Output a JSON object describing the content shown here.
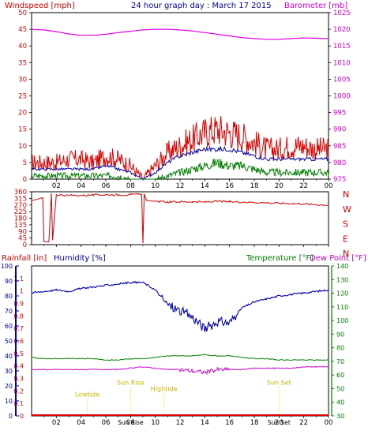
{
  "title": "24 hour graph day : March 17 2015",
  "colors": {
    "wind": "#e00000",
    "wind_avg": "#0000b0",
    "wind_low": "#008000",
    "baro": "#e000e0",
    "dir": "#d00000",
    "rain": "#e00000",
    "humidity": "#0000b0",
    "temp": "#008000",
    "dew": "#d000d0",
    "tide": "#e0d000"
  },
  "x_ticks": [
    "02",
    "04",
    "06",
    "08",
    "10",
    "12",
    "14",
    "16",
    "18",
    "20",
    "22",
    "00"
  ],
  "chart_data": [
    {
      "type": "line",
      "title": "24 hour graph day : March 17 2015",
      "ylabel": "Windspeed [mph]",
      "y2label": "Barometer [mb]",
      "ylim": [
        0,
        50
      ],
      "y2lim": [
        975,
        1025
      ],
      "y_ticks": [
        0,
        5,
        10,
        15,
        20,
        25,
        30,
        35,
        40,
        45,
        50
      ],
      "y2_ticks": [
        975,
        980,
        985,
        990,
        995,
        1000,
        1005,
        1010,
        1015,
        1020,
        1025
      ],
      "series": [
        {
          "x": [
            0,
            1,
            2,
            3,
            4,
            5,
            6,
            7,
            8,
            9,
            10,
            11,
            12,
            13,
            14,
            15,
            16,
            17,
            18,
            19,
            20,
            21,
            22,
            23,
            24
          ],
          "values": [
            5,
            5,
            5,
            6,
            6,
            5,
            7,
            6,
            4,
            0,
            4,
            8,
            10,
            12,
            14,
            15,
            14,
            13,
            11,
            9,
            9,
            10,
            10,
            9,
            9
          ]
        },
        {
          "x": [
            0,
            1,
            2,
            3,
            4,
            5,
            6,
            7,
            8,
            9,
            10,
            11,
            12,
            13,
            14,
            15,
            16,
            17,
            18,
            19,
            20,
            21,
            22,
            23,
            24
          ],
          "values": [
            3,
            3,
            3,
            3,
            3,
            3,
            4,
            3,
            2,
            0,
            2,
            5,
            7,
            8,
            9,
            9,
            9,
            8,
            7,
            6,
            6,
            6,
            6,
            6,
            6
          ]
        },
        {
          "x": [
            0,
            1,
            2,
            3,
            4,
            5,
            6,
            7,
            8,
            9,
            10,
            11,
            12,
            13,
            14,
            15,
            16,
            17,
            18,
            19,
            20,
            21,
            22,
            23,
            24
          ],
          "values": [
            1,
            1,
            1,
            1,
            1,
            1,
            1,
            1,
            0,
            0,
            0,
            1,
            2,
            3,
            4,
            5,
            4,
            4,
            3,
            2,
            2,
            2,
            2,
            2,
            2
          ]
        },
        {
          "x": [
            0,
            1,
            2,
            3,
            4,
            5,
            6,
            7,
            8,
            9,
            10,
            11,
            12,
            13,
            14,
            15,
            16,
            17,
            18,
            19,
            20,
            21,
            22,
            23,
            24
          ],
          "values": [
            1020.0,
            1019.8,
            1019.3,
            1018.6,
            1018.2,
            1018.2,
            1018.5,
            1019.0,
            1019.4,
            1019.8,
            1020.0,
            1020.0,
            1019.8,
            1019.5,
            1019.0,
            1018.5,
            1018.0,
            1017.5,
            1017.2,
            1017.0,
            1017.0,
            1017.2,
            1017.4,
            1017.3,
            1017.2
          ]
        }
      ]
    },
    {
      "type": "line",
      "ylim": [
        0,
        360
      ],
      "y_ticks": [
        0,
        45,
        90,
        135,
        180,
        225,
        270,
        315,
        360
      ],
      "y2_labels": [
        "N",
        "W",
        "S",
        "E",
        "N"
      ],
      "series": [
        {
          "x": [
            0,
            0.5,
            0.9,
            1.0,
            1.4,
            1.6,
            1.7,
            2.0,
            3,
            4,
            5,
            6,
            7,
            8,
            8.9,
            9.0,
            9.1,
            9.3,
            10,
            11,
            12,
            13,
            14,
            15,
            16,
            17,
            18,
            19,
            20,
            21,
            22,
            23,
            24
          ],
          "values": [
            300,
            310,
            320,
            20,
            20,
            350,
            30,
            340,
            335,
            335,
            338,
            340,
            338,
            340,
            345,
            10,
            345,
            300,
            295,
            290,
            292,
            292,
            290,
            295,
            292,
            290,
            288,
            285,
            282,
            280,
            278,
            272,
            270
          ]
        }
      ]
    },
    {
      "type": "line",
      "ylabel": "Rainfall [in]",
      "ylabel2": "Humidity [%]",
      "y2label": "Temperature [°F]",
      "y2label2": "Dew Point [°F]",
      "ylim_rain": [
        0,
        1.2
      ],
      "ylim_humidity": [
        0,
        100
      ],
      "y2lim": [
        30,
        140
      ],
      "rain_ticks": [
        0,
        0.1,
        0.2,
        0.3,
        0.4,
        0.5,
        0.6,
        0.7,
        0.8,
        0.9,
        1,
        1.1
      ],
      "humidity_ticks": [
        0,
        10,
        20,
        30,
        40,
        50,
        60,
        70,
        80,
        90,
        100
      ],
      "temp_ticks": [
        30,
        40,
        50,
        60,
        70,
        80,
        90,
        100,
        110,
        120,
        130,
        140
      ],
      "series": [
        {
          "x": [
            0,
            1,
            2,
            3,
            4,
            5,
            6,
            7,
            8,
            9,
            10,
            11,
            12,
            13,
            14,
            15,
            16,
            17,
            18,
            19,
            20,
            21,
            22,
            23,
            24
          ],
          "values": [
            0,
            0,
            0,
            0,
            0,
            0,
            0,
            0,
            0,
            0,
            0,
            0,
            0,
            0,
            0,
            0,
            0,
            0,
            0,
            0,
            0,
            0,
            0,
            0,
            0
          ]
        },
        {
          "x": [
            0,
            1,
            2,
            3,
            4,
            5,
            6,
            7,
            8,
            9,
            10,
            11,
            12,
            13,
            14,
            15,
            16,
            17,
            18,
            19,
            20,
            21,
            22,
            23,
            24
          ],
          "values": [
            82,
            83,
            84,
            83,
            85,
            86,
            87,
            88,
            89,
            89,
            84,
            74,
            70,
            66,
            58,
            63,
            62,
            72,
            76,
            78,
            80,
            81,
            82,
            83,
            84
          ]
        },
        {
          "x": [
            0,
            1,
            2,
            3,
            4,
            5,
            6,
            7,
            8,
            9,
            10,
            11,
            12,
            13,
            14,
            15,
            16,
            17,
            18,
            19,
            20,
            21,
            22,
            23,
            24
          ],
          "values": [
            73,
            72,
            72,
            72,
            72,
            72,
            71,
            71,
            72,
            72,
            73,
            74,
            74,
            74,
            75,
            74,
            74,
            73,
            72,
            72,
            71,
            71,
            71,
            71,
            71
          ]
        },
        {
          "x": [
            0,
            1,
            2,
            3,
            4,
            5,
            6,
            7,
            8,
            9,
            10,
            11,
            12,
            13,
            14,
            15,
            16,
            17,
            18,
            19,
            20,
            21,
            22,
            23,
            24
          ],
          "values": [
            64,
            64,
            64,
            64,
            64,
            64,
            64,
            64,
            65,
            66,
            65,
            64,
            64,
            63,
            62,
            64,
            64,
            64,
            65,
            65,
            65,
            65,
            66,
            66,
            66
          ]
        }
      ],
      "annotations": [
        {
          "label": "Lowtide",
          "x": 4.5,
          "y_in": 0.155
        },
        {
          "label": "Sun Rise",
          "x": 8.0,
          "y_in": 0.25
        },
        {
          "label": "Hightide",
          "x": 10.7,
          "y_in": 0.2
        },
        {
          "label": "Sun Set",
          "x": 20.0,
          "y_in": 0.25
        }
      ],
      "bottom_labels": [
        {
          "label": "Sun Rise",
          "x": 8.0
        },
        {
          "label": "Sun Set",
          "x": 20.0
        }
      ]
    }
  ]
}
